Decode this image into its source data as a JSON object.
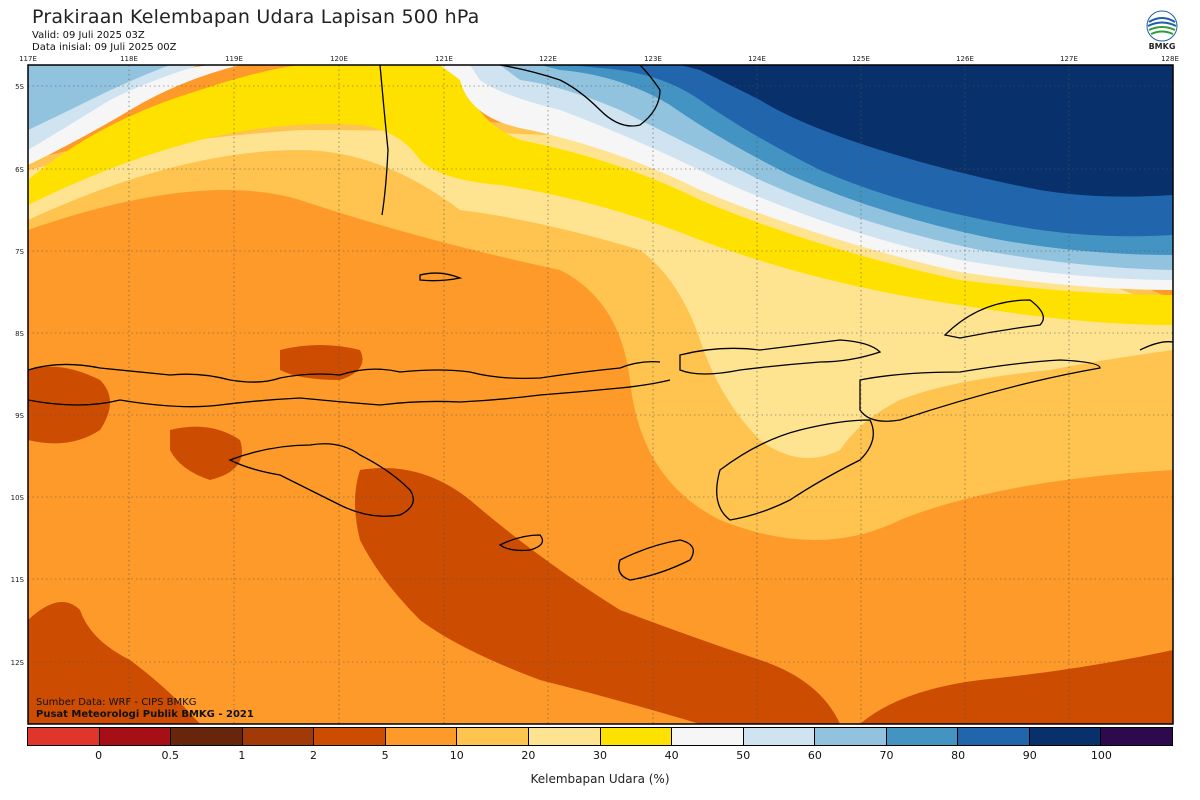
{
  "header": {
    "title": "Prakiraan Kelembapan Udara Lapisan 500 hPa",
    "valid": "Valid: 09 Juli 2025 03Z",
    "init": "Data inisial: 09 Juli 2025 00Z"
  },
  "logo": {
    "text": "BMKG",
    "icon": "bmkg-logo-icon"
  },
  "map": {
    "lon_labels": [
      "117E",
      "118E",
      "119E",
      "120E",
      "121E",
      "122E",
      "123E",
      "124E",
      "125E",
      "126E",
      "127E",
      "128E"
    ],
    "lat_labels": [
      "5S",
      "6S",
      "7S",
      "8S",
      "9S",
      "10S",
      "11S",
      "12S"
    ],
    "colors": {
      "darkorange": "#cc4c02",
      "orange": "#fe9a29",
      "lightorange": "#fec44f",
      "paleyellow": "#fee391",
      "yellow": "#ffe100",
      "white": "#f6f6f6",
      "lightblue1": "#cfe3f0",
      "lightblue2": "#92c3de",
      "midblue": "#4393c3",
      "blue": "#2166ac",
      "navy": "#08306b"
    }
  },
  "credits": {
    "source": "Sumber Data: WRF - CIPS BMKG",
    "org": "Pusat Meteorologi Publik BMKG - 2021"
  },
  "legend": {
    "colors": [
      "#e0352b",
      "#a50f15",
      "#67260c",
      "#a23a08",
      "#cc4c02",
      "#fe9a29",
      "#fec44f",
      "#fee391",
      "#ffe100",
      "#f6f6f6",
      "#cfe3f0",
      "#92c3de",
      "#4393c3",
      "#2166ac",
      "#08306b",
      "#2d0a4e"
    ],
    "ticks": [
      "0",
      "0.5",
      "1",
      "2",
      "5",
      "10",
      "20",
      "30",
      "40",
      "50",
      "60",
      "70",
      "80",
      "90",
      "100"
    ],
    "label": "Kelembapan Udara (%)"
  }
}
